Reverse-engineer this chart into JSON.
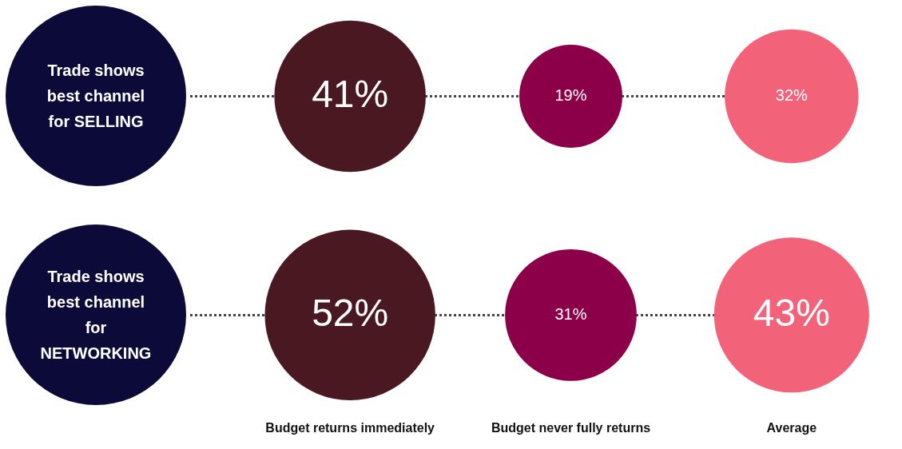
{
  "chart_data": {
    "type": "other",
    "categories": [
      "Budget returns immediately",
      "Budget never fully returns",
      "Average"
    ],
    "y_categories": [
      "Trade shows best channel for SELLING",
      "Trade shows best channel for NETWORKING"
    ],
    "series": [
      {
        "values": [
          41,
          19,
          32
        ],
        "value_labels": [
          "41%",
          "19%",
          "32%"
        ],
        "colors": [
          "#4a1820",
          "#8b0048",
          "#f2637a"
        ]
      },
      {
        "values": [
          52,
          31,
          43
        ],
        "value_labels": [
          "52%",
          "31%",
          "43%"
        ],
        "colors": [
          "#4a1820",
          "#8b0048",
          "#f2637a"
        ]
      }
    ],
    "legend": false
  }
}
